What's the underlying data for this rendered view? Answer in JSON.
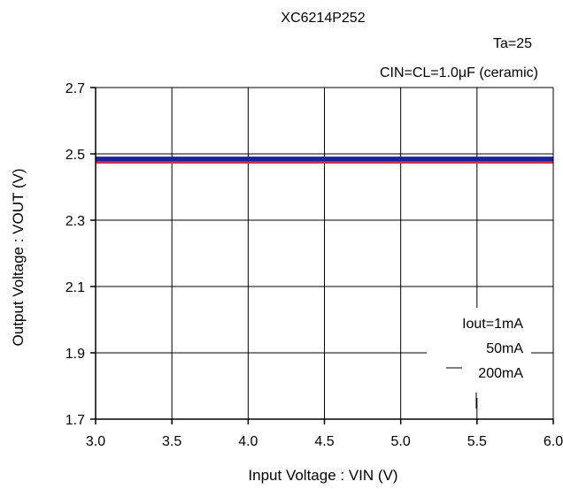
{
  "chart_data": {
    "type": "line",
    "title": "XC6214P252",
    "annotations": {
      "ta": "Ta=25",
      "capacitor": "CIN=CL=1.0μF  (ceramic)"
    },
    "legend_entries": [
      "Iout=1mA",
      "50mA",
      "200mA"
    ],
    "xlabel": "Input Voltage : VIN (V)",
    "ylabel": "Output Voltage : VOUT (V)",
    "x_ticks": [
      "3.0",
      "3.5",
      "4.0",
      "4.5",
      "5.0",
      "5.5",
      "6.0"
    ],
    "y_ticks": [
      "2.7",
      "2.5",
      "2.3",
      "2.1",
      "1.9",
      "1.7"
    ],
    "xlim": [
      3.0,
      6.0
    ],
    "ylim": [
      1.7,
      2.7
    ],
    "grid": true,
    "legend_location": "lower-right",
    "series": [
      {
        "name": "Iout=1mA",
        "color": "#1f1f9a",
        "x": [
          3.0,
          3.5,
          4.0,
          4.5,
          5.0,
          5.5,
          6.0
        ],
        "y": [
          2.485,
          2.485,
          2.485,
          2.485,
          2.485,
          2.485,
          2.485
        ]
      },
      {
        "name": "50mA",
        "color": "#a03070",
        "x": [
          3.0,
          3.5,
          4.0,
          4.5,
          5.0,
          5.5,
          6.0
        ],
        "y": [
          2.481,
          2.481,
          2.481,
          2.481,
          2.481,
          2.481,
          2.481
        ]
      },
      {
        "name": "200mA",
        "color": "#ff2a2a",
        "x": [
          3.0,
          3.5,
          4.0,
          4.5,
          5.0,
          5.5,
          6.0
        ],
        "y": [
          2.477,
          2.477,
          2.477,
          2.477,
          2.477,
          2.477,
          2.477
        ]
      }
    ]
  }
}
